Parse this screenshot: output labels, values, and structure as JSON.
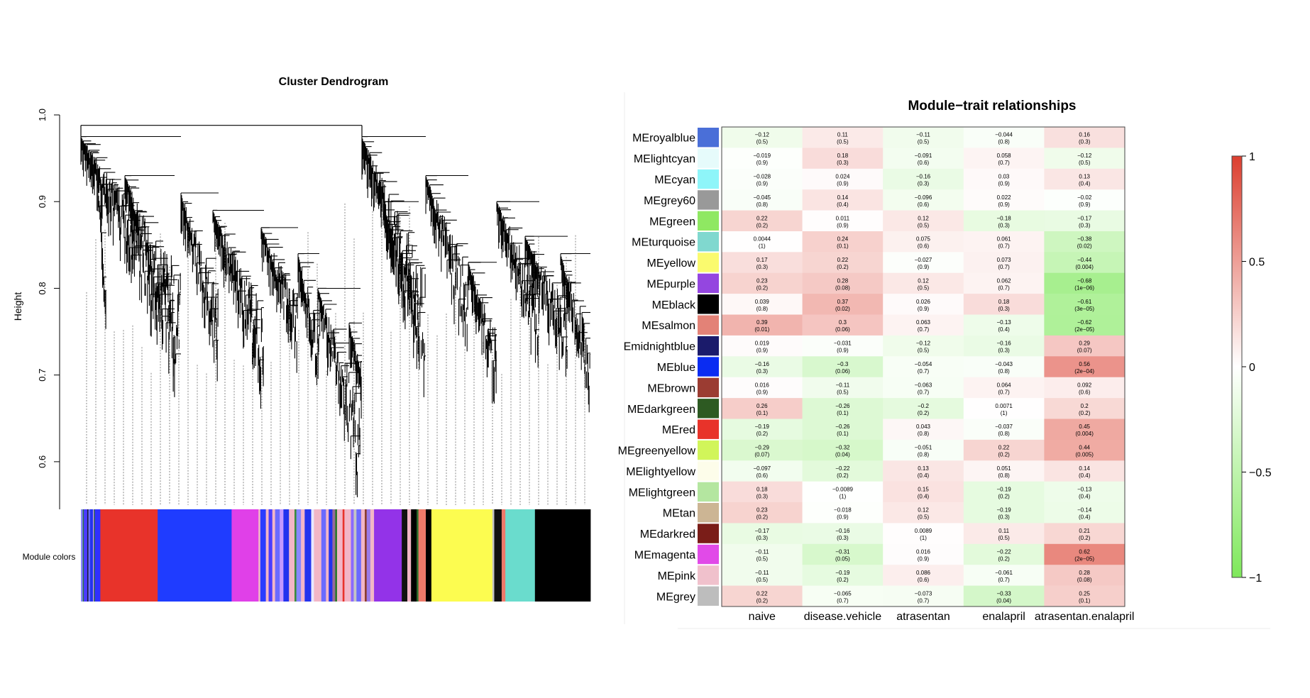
{
  "dendrogram": {
    "title": "Cluster Dendrogram",
    "ylabel": "Height",
    "y_ticks": [
      "0.6",
      "0.7",
      "0.8",
      "0.9",
      "1.0"
    ],
    "ylim": [
      0.55,
      1.0
    ],
    "colorbar_label": "Module colors",
    "module_color_segments": [
      {
        "color": "#8888ff",
        "w": 2
      },
      {
        "color": "#2a7a2a",
        "w": 1
      },
      {
        "color": "#4a3cff",
        "w": 4
      },
      {
        "color": "#111111",
        "w": 1
      },
      {
        "color": "#6a6aff",
        "w": 2
      },
      {
        "color": "#2233ee",
        "w": 3
      },
      {
        "color": "#c49aff",
        "w": 1
      },
      {
        "color": "#2a6a2a",
        "w": 1
      },
      {
        "color": "#3030ff",
        "w": 6
      },
      {
        "color": "#e8332a",
        "w": 62
      },
      {
        "color": "#1f3cff",
        "w": 80
      },
      {
        "color": "#e040e8",
        "w": 29
      },
      {
        "color": "#f2b6c6",
        "w": 2
      },
      {
        "color": "#2a3cff",
        "w": 6
      },
      {
        "color": "#f2b6c6",
        "w": 3
      },
      {
        "color": "#4a3cff",
        "w": 4
      },
      {
        "color": "#f2b6c6",
        "w": 3
      },
      {
        "color": "#6a6aff",
        "w": 5
      },
      {
        "color": "#c49aff",
        "w": 4
      },
      {
        "color": "#2233ee",
        "w": 6
      },
      {
        "color": "#f2b6c6",
        "w": 6
      },
      {
        "color": "#3a8a3a",
        "w": 2
      },
      {
        "color": "#8888ff",
        "w": 5
      },
      {
        "color": "#f2b6c6",
        "w": 4
      },
      {
        "color": "#2233ee",
        "w": 7
      },
      {
        "color": "#e8e8ff",
        "w": 3
      },
      {
        "color": "#f2b6c6",
        "w": 8
      },
      {
        "color": "#6a6aff",
        "w": 5
      },
      {
        "color": "#f2b6c6",
        "w": 3
      },
      {
        "color": "#2233ee",
        "w": 4
      },
      {
        "color": "#9a6a9a",
        "w": 3
      },
      {
        "color": "#2a7a2a",
        "w": 2
      },
      {
        "color": "#f2b6c6",
        "w": 6
      },
      {
        "color": "#e8332a",
        "w": 2
      },
      {
        "color": "#f2b6c6",
        "w": 7
      },
      {
        "color": "#8a6aff",
        "w": 3
      },
      {
        "color": "#c4c4c4",
        "w": 3
      },
      {
        "color": "#6a6aff",
        "w": 5
      },
      {
        "color": "#f2b6c6",
        "w": 4
      },
      {
        "color": "#8b3a2a",
        "w": 2
      },
      {
        "color": "#9a7ae8",
        "w": 4
      },
      {
        "color": "#f2b6c6",
        "w": 4
      },
      {
        "color": "#9333e8",
        "w": 30
      },
      {
        "color": "#111111",
        "w": 6
      },
      {
        "color": "#f2b6c6",
        "w": 4
      },
      {
        "color": "#000000",
        "w": 6
      },
      {
        "color": "#2a6a2a",
        "w": 2
      },
      {
        "color": "#ee7a6a",
        "w": 8
      },
      {
        "color": "#000000",
        "w": 6
      },
      {
        "color": "#fcfc50",
        "w": 66
      },
      {
        "color": "#c4c4c4",
        "w": 2
      },
      {
        "color": "#111111",
        "w": 8
      },
      {
        "color": "#ee7a6a",
        "w": 4
      },
      {
        "color": "#6adccd",
        "w": 32
      },
      {
        "color": "#000000",
        "w": 60
      }
    ]
  },
  "heatmap_header": {
    "title": "Module−trait relationships",
    "colorbar_ticks": [
      "1",
      "0.5",
      "0",
      "−0.5",
      "−1"
    ]
  },
  "chart_data": [
    {
      "type": "dendrogram",
      "title": "Cluster Dendrogram",
      "ylabel": "Height",
      "ylim": [
        0.55,
        1.0
      ],
      "xlabel": "",
      "colorbar_label": "Module colors"
    },
    {
      "type": "heatmap",
      "title": "Module−trait relationships",
      "columns": [
        "naive",
        "disease.vehicle",
        "atrasentan",
        "enalapril",
        "atrasentan.enalapril"
      ],
      "rows": [
        {
          "name": "MEroyalblue",
          "color": "#4a6fd8",
          "r": [
            -0.12,
            0.11,
            -0.11,
            -0.044,
            0.16
          ],
          "r_text": [
            "−0.12",
            "0.11",
            "−0.11",
            "−0.044",
            "0.16"
          ],
          "p_text": [
            "(0.5)",
            "(0.5)",
            "(0.5)",
            "(0.8)",
            "(0.3)"
          ]
        },
        {
          "name": "MElightcyan",
          "color": "#e6fbfb",
          "r": [
            -0.019,
            0.18,
            -0.091,
            0.058,
            -0.12
          ],
          "r_text": [
            "−0.019",
            "0.18",
            "−0.091",
            "0.058",
            "−0.12"
          ],
          "p_text": [
            "(0.9)",
            "(0.3)",
            "(0.6)",
            "(0.7)",
            "(0.5)"
          ]
        },
        {
          "name": "MEcyan",
          "color": "#8ef5f9",
          "r": [
            -0.028,
            0.024,
            -0.16,
            0.03,
            0.13
          ],
          "r_text": [
            "−0.028",
            "0.024",
            "−0.16",
            "0.03",
            "0.13"
          ],
          "p_text": [
            "(0.9)",
            "(0.9)",
            "(0.3)",
            "(0.9)",
            "(0.4)"
          ]
        },
        {
          "name": "MEgrey60",
          "color": "#999999",
          "r": [
            -0.045,
            0.14,
            -0.096,
            0.022,
            -0.02
          ],
          "r_text": [
            "−0.045",
            "0.14",
            "−0.096",
            "0.022",
            "−0.02"
          ],
          "p_text": [
            "(0.8)",
            "(0.4)",
            "(0.6)",
            "(0.9)",
            "(0.9)"
          ]
        },
        {
          "name": "MEgreen",
          "color": "#8fe862",
          "r": [
            0.22,
            0.011,
            0.12,
            -0.18,
            -0.17
          ],
          "r_text": [
            "0.22",
            "0.011",
            "0.12",
            "−0.18",
            "−0.17"
          ],
          "p_text": [
            "(0.2)",
            "(0.9)",
            "(0.5)",
            "(0.3)",
            "(0.3)"
          ]
        },
        {
          "name": "MEturquoise",
          "color": "#80d8cf",
          "r": [
            0.0044,
            0.24,
            0.075,
            0.061,
            -0.38
          ],
          "r_text": [
            "0.0044",
            "0.24",
            "0.075",
            "0.061",
            "−0.38"
          ],
          "p_text": [
            "(1)",
            "(0.1)",
            "(0.6)",
            "(0.7)",
            "(0.02)"
          ]
        },
        {
          "name": "MEyellow",
          "color": "#fafa6e",
          "r": [
            0.17,
            0.22,
            -0.027,
            0.073,
            -0.44
          ],
          "r_text": [
            "0.17",
            "0.22",
            "−0.027",
            "0.073",
            "−0.44"
          ],
          "p_text": [
            "(0.3)",
            "(0.2)",
            "(0.9)",
            "(0.7)",
            "(0.004)"
          ]
        },
        {
          "name": "MEpurple",
          "color": "#9446e0",
          "r": [
            0.23,
            0.28,
            0.12,
            0.062,
            -0.68
          ],
          "r_text": [
            "0.23",
            "0.28",
            "0.12",
            "0.062",
            "−0.68"
          ],
          "p_text": [
            "(0.2)",
            "(0.08)",
            "(0.5)",
            "(0.7)",
            "(1e−06)"
          ]
        },
        {
          "name": "MEblack",
          "color": "#000000",
          "r": [
            0.039,
            0.37,
            0.026,
            0.18,
            -0.61
          ],
          "r_text": [
            "0.039",
            "0.37",
            "0.026",
            "0.18",
            "−0.61"
          ],
          "p_text": [
            "(0.8)",
            "(0.02)",
            "(0.9)",
            "(0.3)",
            "(3e−05)"
          ]
        },
        {
          "name": "MEsalmon",
          "color": "#e38277",
          "r": [
            0.39,
            0.3,
            0.063,
            -0.13,
            -0.62
          ],
          "r_text": [
            "0.39",
            "0.3",
            "0.063",
            "−0.13",
            "−0.62"
          ],
          "p_text": [
            "(0.01)",
            "(0.06)",
            "(0.7)",
            "(0.4)",
            "(2e−05)"
          ]
        },
        {
          "name": "Emidnightblue",
          "color": "#1b1b6b",
          "r": [
            0.019,
            -0.031,
            -0.12,
            -0.16,
            0.29
          ],
          "r_text": [
            "0.019",
            "−0.031",
            "−0.12",
            "−0.16",
            "0.29"
          ],
          "p_text": [
            "(0.9)",
            "(0.9)",
            "(0.5)",
            "(0.3)",
            "(0.07)"
          ]
        },
        {
          "name": "MEblue",
          "color": "#0a2cf2",
          "r": [
            -0.16,
            -0.3,
            -0.054,
            -0.043,
            0.56
          ],
          "r_text": [
            "−0.16",
            "−0.3",
            "−0.054",
            "−0.043",
            "0.56"
          ],
          "p_text": [
            "(0.3)",
            "(0.06)",
            "(0.7)",
            "(0.8)",
            "(2e−04)"
          ]
        },
        {
          "name": "MEbrown",
          "color": "#9b3c32",
          "r": [
            0.016,
            -0.11,
            -0.063,
            0.064,
            0.092
          ],
          "r_text": [
            "0.016",
            "−0.11",
            "−0.063",
            "0.064",
            "0.092"
          ],
          "p_text": [
            "(0.9)",
            "(0.5)",
            "(0.7)",
            "(0.7)",
            "(0.6)"
          ]
        },
        {
          "name": "MEdarkgreen",
          "color": "#2d5a22",
          "r": [
            0.26,
            -0.26,
            -0.2,
            0.0071,
            0.2
          ],
          "r_text": [
            "0.26",
            "−0.26",
            "−0.2",
            "0.0071",
            "0.2"
          ],
          "p_text": [
            "(0.1)",
            "(0.1)",
            "(0.2)",
            "(1)",
            "(0.2)"
          ]
        },
        {
          "name": "MEred",
          "color": "#e8332a",
          "r": [
            -0.19,
            -0.26,
            0.043,
            -0.037,
            0.45
          ],
          "r_text": [
            "−0.19",
            "−0.26",
            "0.043",
            "−0.037",
            "0.45"
          ],
          "p_text": [
            "(0.2)",
            "(0.1)",
            "(0.8)",
            "(0.8)",
            "(0.004)"
          ]
        },
        {
          "name": "MEgreenyellow",
          "color": "#d1f55a",
          "r": [
            -0.29,
            -0.32,
            -0.051,
            0.22,
            0.44
          ],
          "r_text": [
            "−0.29",
            "−0.32",
            "−0.051",
            "0.22",
            "0.44"
          ],
          "p_text": [
            "(0.07)",
            "(0.04)",
            "(0.8)",
            "(0.2)",
            "(0.005)"
          ]
        },
        {
          "name": "MElightyellow",
          "color": "#fdfdea",
          "r": [
            -0.097,
            -0.22,
            0.13,
            0.051,
            0.14
          ],
          "r_text": [
            "−0.097",
            "−0.22",
            "0.13",
            "0.051",
            "0.14"
          ],
          "p_text": [
            "(0.6)",
            "(0.2)",
            "(0.4)",
            "(0.8)",
            "(0.4)"
          ]
        },
        {
          "name": "MElightgreen",
          "color": "#b4e6a0",
          "r": [
            0.18,
            -0.0089,
            0.15,
            -0.19,
            -0.13
          ],
          "r_text": [
            "0.18",
            "−0.0089",
            "0.15",
            "−0.19",
            "−0.13"
          ],
          "p_text": [
            "(0.3)",
            "(1)",
            "(0.4)",
            "(0.2)",
            "(0.4)"
          ]
        },
        {
          "name": "MEtan",
          "color": "#ccb594",
          "r": [
            0.23,
            -0.018,
            0.12,
            -0.19,
            -0.14
          ],
          "r_text": [
            "0.23",
            "−0.018",
            "0.12",
            "−0.19",
            "−0.14"
          ],
          "p_text": [
            "(0.2)",
            "(0.9)",
            "(0.5)",
            "(0.3)",
            "(0.4)"
          ]
        },
        {
          "name": "MEdarkred",
          "color": "#7a1d18",
          "r": [
            -0.17,
            -0.16,
            0.0089,
            0.11,
            0.21
          ],
          "r_text": [
            "−0.17",
            "−0.16",
            "0.0089",
            "0.11",
            "0.21"
          ],
          "p_text": [
            "(0.3)",
            "(0.3)",
            "(1)",
            "(0.5)",
            "(0.2)"
          ]
        },
        {
          "name": "MEmagenta",
          "color": "#e14ae8",
          "r": [
            -0.11,
            -0.31,
            0.016,
            -0.22,
            0.62
          ],
          "r_text": [
            "−0.11",
            "−0.31",
            "0.016",
            "−0.22",
            "0.62"
          ],
          "p_text": [
            "(0.5)",
            "(0.05)",
            "(0.9)",
            "(0.2)",
            "(2e−05)"
          ]
        },
        {
          "name": "MEpink",
          "color": "#f0c1cc",
          "r": [
            -0.11,
            -0.19,
            0.086,
            -0.061,
            0.28
          ],
          "r_text": [
            "−0.11",
            "−0.19",
            "0.086",
            "−0.061",
            "0.28"
          ],
          "p_text": [
            "(0.5)",
            "(0.2)",
            "(0.6)",
            "(0.7)",
            "(0.08)"
          ]
        },
        {
          "name": "MEgrey",
          "color": "#bdbdbd",
          "r": [
            0.22,
            -0.065,
            -0.073,
            -0.33,
            0.25
          ],
          "r_text": [
            "0.22",
            "−0.065",
            "−0.073",
            "−0.33",
            "0.25"
          ],
          "p_text": [
            "(0.2)",
            "(0.7)",
            "(0.7)",
            "(0.04)",
            "(0.1)"
          ]
        }
      ],
      "colorbar": {
        "range": [
          -1,
          1
        ],
        "low_color": "#7ee85a",
        "mid_color": "#ffffff",
        "high_color": "#dc3f2f"
      }
    }
  ]
}
